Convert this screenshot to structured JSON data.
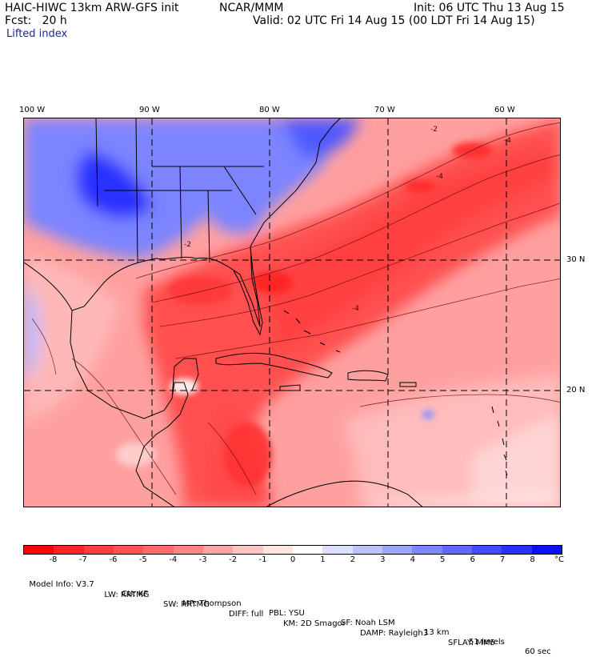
{
  "header": {
    "model_title": "HAIC-HIWC 13km ARW-GFS init",
    "agency": "NCAR/MMM",
    "init_time": "Init: 06 UTC Thu 13 Aug 15",
    "forecast_hour": "Fcst:   20 h",
    "valid_time": "Valid: 02 UTC Fri 14 Aug 15 (00 LDT Fri 14 Aug 15)",
    "field_name": "Lifted index"
  },
  "map": {
    "lon_labels": [
      "100 W",
      "90 W",
      "80 W",
      "70 W",
      "60 W"
    ],
    "lat_labels": [
      "30 N",
      "20 N"
    ],
    "contour_labels": [
      "-2",
      "-4",
      "-4",
      "-4",
      "-2"
    ],
    "region": "Gulf of Mexico, Caribbean and western Atlantic"
  },
  "colorbar": {
    "tick_labels": [
      "-8",
      "-7",
      "-6",
      "-5",
      "-4",
      "-3",
      "-2",
      "-1",
      "0",
      "1",
      "2",
      "3",
      "4",
      "5",
      "6",
      "7",
      "8"
    ],
    "unit": "°C",
    "colors": [
      "#ff0000",
      "#ff2222",
      "#ff3b3b",
      "#ff5252",
      "#ff6a6a",
      "#ff8585",
      "#ffa3a3",
      "#ffc4c4",
      "#ffe4e4",
      "#ffffff",
      "#dde0ff",
      "#bcc2ff",
      "#9ea4ff",
      "#7f86ff",
      "#6168ff",
      "#434aff",
      "#2a30ff",
      "#0a10ff"
    ]
  },
  "model_info": {
    "line1": [
      "Model Info: V3.7",
      "CU: KF",
      "MP: Thompson",
      "PBL: YSU",
      "SF: Noah LSM",
      "13 km",
      "51 levels",
      "60 sec"
    ],
    "line2": [
      "LW: RRTMG",
      "SW: RRTMG",
      "DIFF: full",
      "KM: 2D Smagor",
      "DAMP: Rayleigh3",
      "SFLAY: MM5"
    ]
  }
}
